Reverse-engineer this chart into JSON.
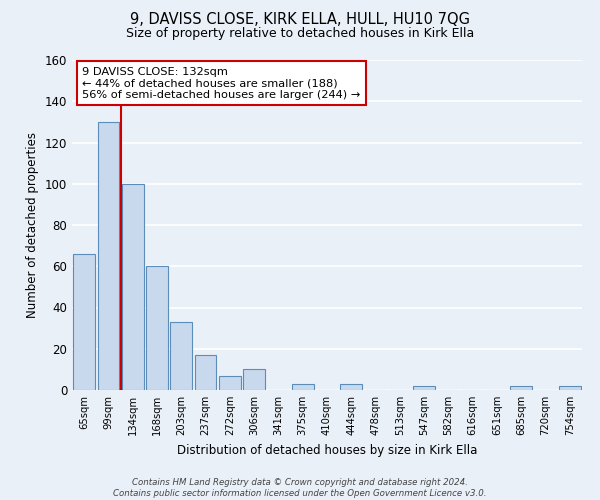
{
  "title_line1": "9, DAVISS CLOSE, KIRK ELLA, HULL, HU10 7QG",
  "title_line2": "Size of property relative to detached houses in Kirk Ella",
  "xlabel": "Distribution of detached houses by size in Kirk Ella",
  "ylabel": "Number of detached properties",
  "bin_labels": [
    "65sqm",
    "99sqm",
    "134sqm",
    "168sqm",
    "203sqm",
    "237sqm",
    "272sqm",
    "306sqm",
    "341sqm",
    "375sqm",
    "410sqm",
    "444sqm",
    "478sqm",
    "513sqm",
    "547sqm",
    "582sqm",
    "616sqm",
    "651sqm",
    "685sqm",
    "720sqm",
    "754sqm"
  ],
  "bar_heights": [
    66,
    130,
    100,
    60,
    33,
    17,
    7,
    10,
    0,
    3,
    0,
    3,
    0,
    0,
    2,
    0,
    0,
    0,
    2,
    0,
    2
  ],
  "bar_color": "#c9d9ed",
  "bar_edge_color": "#5b8db8",
  "background_color": "#eaf0f8",
  "grid_color": "#ffffff",
  "ylim": [
    0,
    160
  ],
  "yticks": [
    0,
    20,
    40,
    60,
    80,
    100,
    120,
    140,
    160
  ],
  "property_line_color": "#cc0000",
  "annotation_title": "9 DAVISS CLOSE: 132sqm",
  "annotation_line1": "← 44% of detached houses are smaller (188)",
  "annotation_line2": "56% of semi-detached houses are larger (244) →",
  "annotation_box_color": "#ffffff",
  "annotation_box_edge": "#cc0000",
  "footer_line1": "Contains HM Land Registry data © Crown copyright and database right 2024.",
  "footer_line2": "Contains public sector information licensed under the Open Government Licence v3.0."
}
